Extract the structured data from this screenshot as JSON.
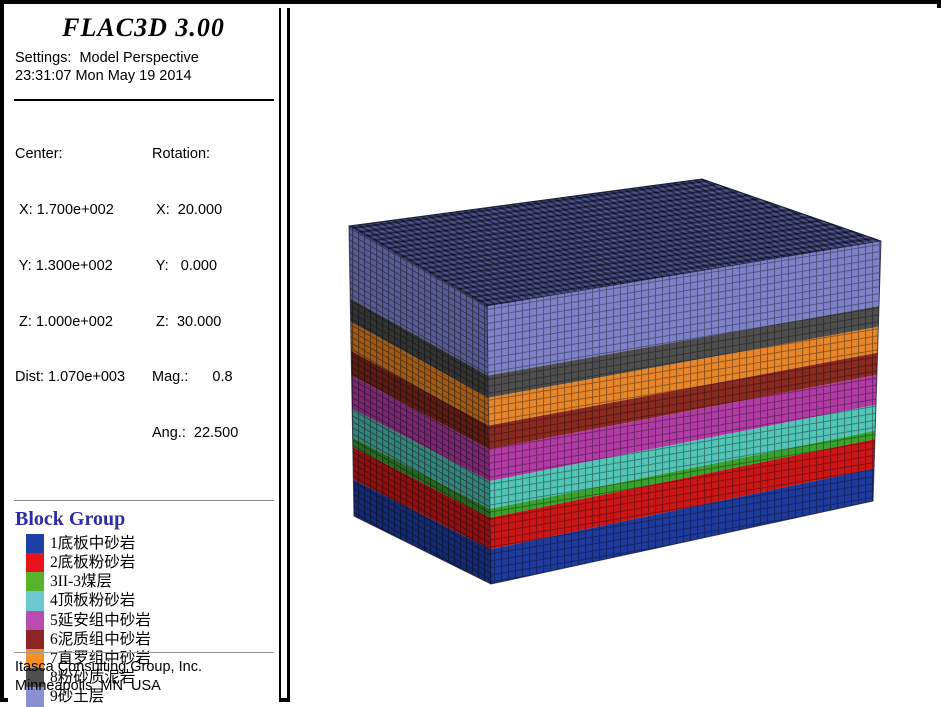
{
  "header": {
    "title": "FLAC3D 3.00",
    "settings": "Settings:  Model Perspective",
    "timestamp": "23:31:07 Mon May 19 2014"
  },
  "view": {
    "center_rows": [
      "Center:",
      " X: 1.700e+002",
      " Y: 1.300e+002",
      " Z: 1.000e+002",
      "Dist: 1.070e+003"
    ],
    "rotation_rows": [
      "Rotation:",
      " X:  20.000",
      " Y:   0.000",
      " Z:  30.000",
      "Mag.:      0.8",
      "Ang.:  22.500"
    ]
  },
  "legend": {
    "title": "Block Group",
    "title_color": "#2d2da5",
    "items": [
      {
        "label": "1底板中砂岩",
        "color": "#1d3fa8"
      },
      {
        "label": "2底板粉砂岩",
        "color": "#e8131b"
      },
      {
        "label": "3II-3煤层",
        "color": "#58b32a"
      },
      {
        "label": "4顶板粉砂岩",
        "color": "#6cc7cf"
      },
      {
        "label": "5延安组中砂岩",
        "color": "#b84cb0"
      },
      {
        "label": "6泥质组中砂岩",
        "color": "#8c2425"
      },
      {
        "label": "7直罗组中砂岩",
        "color": "#f59027"
      },
      {
        "label": "8粉砂质泥岩",
        "color": "#4f4f51"
      },
      {
        "label": "9砂土层",
        "color": "#8a8fd4"
      }
    ]
  },
  "footer": {
    "line1": "Itasca Consulting Group, Inc.",
    "line2": "Minneapolis, MN  USA"
  },
  "model": {
    "top_color": "#343a6b",
    "corners": {
      "Ltop": [
        345,
        222
      ],
      "B": [
        698,
        175
      ],
      "Rtop": [
        877,
        237
      ],
      "Ftop": [
        483,
        302
      ],
      "Fbot": [
        487,
        580
      ],
      "Rbot": [
        869,
        497
      ],
      "Lbot": [
        350,
        512
      ]
    },
    "layers": [
      {
        "name": "9砂土层",
        "fraction": 0.25,
        "right": "#7e82c8",
        "left": "#585c94"
      },
      {
        "name": "8粉砂质泥岩",
        "fraction": 0.08,
        "right": "#4e4e4e",
        "left": "#333333"
      },
      {
        "name": "7直罗组中砂岩",
        "fraction": 0.1,
        "right": "#e8862a",
        "left": "#a05a17"
      },
      {
        "name": "6泥质组中砂岩",
        "fraction": 0.085,
        "right": "#8a2a20",
        "left": "#5c1b13"
      },
      {
        "name": "5延安组中砂岩",
        "fraction": 0.115,
        "right": "#b23ba6",
        "left": "#7a2871"
      },
      {
        "name": "4顶板粉砂岩",
        "fraction": 0.1,
        "right": "#52c6b8",
        "left": "#35837a"
      },
      {
        "name": "3II-3煤层",
        "fraction": 0.032,
        "right": "#3aa32e",
        "left": "#26691e"
      },
      {
        "name": "2底板粉砂岩",
        "fraction": 0.113,
        "right": "#cc1515",
        "left": "#8f1010"
      },
      {
        "name": "1底板中砂岩",
        "fraction": 0.125,
        "right": "#1d3a9c",
        "left": "#132a70"
      }
    ]
  }
}
